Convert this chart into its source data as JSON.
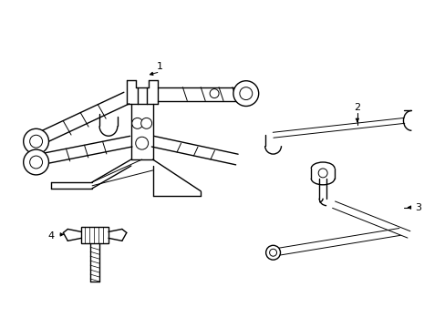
{
  "background_color": "#ffffff",
  "line_color": "#000000",
  "lw": 1.0,
  "tlw": 0.7,
  "fig_width": 4.89,
  "fig_height": 3.6,
  "dpi": 100
}
